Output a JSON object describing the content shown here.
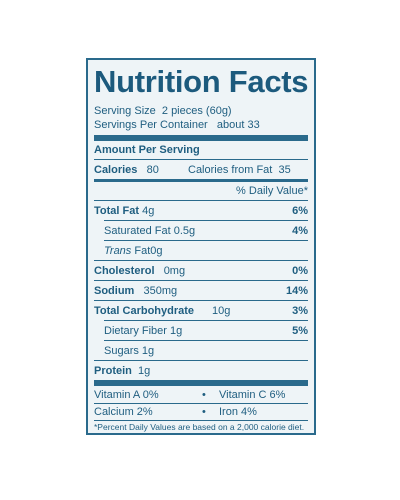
{
  "title": "Nutrition Facts",
  "serving_size": {
    "label": "Serving Size",
    "value": "2 pieces (60g)"
  },
  "servings_per_container": {
    "label": "Servings Per Container",
    "value": "about 33"
  },
  "amount_per_serving": "Amount Per Serving",
  "calories": {
    "label": "Calories",
    "value": "80",
    "fat_label": "Calories from Fat",
    "fat_value": "35"
  },
  "daily_value_header": "% Daily Value*",
  "nutrients": {
    "total_fat": {
      "label": "Total Fat",
      "amount": "4g",
      "dv": "6%"
    },
    "saturated_fat": {
      "label": "Saturated Fat",
      "amount": "0.5g",
      "dv": "4%"
    },
    "trans_fat": {
      "label_italic": "Trans",
      "label": "Fat",
      "amount": "0g"
    },
    "cholesterol": {
      "label": "Cholesterol",
      "amount": "0mg",
      "dv": "0%"
    },
    "sodium": {
      "label": "Sodium",
      "amount": "350mg",
      "dv": "14%"
    },
    "total_carbohydrate": {
      "label": "Total Carbohydrate",
      "amount": "10g",
      "dv": "3%"
    },
    "dietary_fiber": {
      "label": "Dietary Fiber",
      "amount": "1g",
      "dv": "5%"
    },
    "sugars": {
      "label": "Sugars",
      "amount": "1g"
    },
    "protein": {
      "label": "Protein",
      "amount": "1g"
    }
  },
  "vitamins": {
    "vitamin_a": "Vitamin A 0%",
    "vitamin_c": "Vitamin C 6%",
    "calcium": "Calcium 2%",
    "iron": "Iron 4%",
    "bullet": "•"
  },
  "footnote": "*Percent Daily Values are based on a 2,000 calorie diet.",
  "colors": {
    "text": "#1f5e80",
    "rule": "#2a6a8c",
    "background": "#eef4f7"
  }
}
